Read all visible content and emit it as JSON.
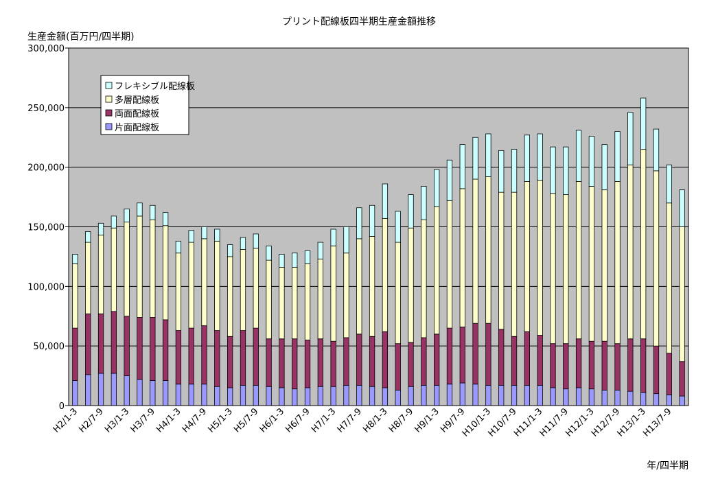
{
  "chart_data": {
    "type": "bar",
    "stacked": true,
    "title": "プリント配線板四半期生産金額推移",
    "ylabel": "生産金額(百万円/四半期)",
    "xlabel": "年/四半期",
    "ylim": [
      0,
      300000
    ],
    "yticks": [
      "0",
      "50,000",
      "100,000",
      "150,000",
      "200,000",
      "250,000",
      "300,000"
    ],
    "grid": true,
    "legend_position": "top-left",
    "categories": [
      "H2/1-3",
      "H2/4-6",
      "H2/7-9",
      "H2/10-12",
      "H3/1-3",
      "H3/4-6",
      "H3/7-9",
      "H3/10-12",
      "H4/1-3",
      "H4/4-6",
      "H4/7-9",
      "H4/10-12",
      "H5/1-3",
      "H5/4-6",
      "H5/7-9",
      "H5/10-12",
      "H6/1-3",
      "H6/4-6",
      "H6/7-9",
      "H6/10-12",
      "H7/1-3",
      "H7/4-6",
      "H7/7-9",
      "H7/10-12",
      "H8/1-3",
      "H8/4-6",
      "H8/7-9",
      "H8/10-12",
      "H9/1-3",
      "H9/4-6",
      "H9/7-9",
      "H9/10-12",
      "H10/1-3",
      "H10/4-6",
      "H10/7-9",
      "H10/10-12",
      "H11/1-3",
      "H11/4-6",
      "H11/7-9",
      "H11/10-12",
      "H12/1-3",
      "H12/4-6",
      "H12/7-9",
      "H12/10-12",
      "H13/1-3",
      "H13/4-6",
      "H13/7-9",
      "H13/10-12"
    ],
    "xtick_labels": [
      "H2/1-3",
      "H2/7-9",
      "H3/1-3",
      "H3/7-9",
      "H4/1-3",
      "H4/7-9",
      "H5/1-3",
      "H5/7-9",
      "H6/1-3",
      "H6/7-9",
      "H7/1-3",
      "H7/7-9",
      "H8/1-3",
      "H8/7-9",
      "H9/1-3",
      "H9/7-9",
      "H10/1-3",
      "H10/7-9",
      "H11/1-3",
      "H11/7-9",
      "H12/1-3",
      "H12/7-9",
      "H13/1-3",
      "H13/7-9"
    ],
    "series": [
      {
        "name": "片面配線板",
        "color": "#9999ff",
        "values": [
          21000,
          26000,
          27000,
          27000,
          25000,
          22000,
          21000,
          21000,
          18000,
          18000,
          18000,
          16000,
          15000,
          17000,
          17000,
          16000,
          15000,
          14000,
          15000,
          16000,
          16000,
          17000,
          17000,
          16000,
          15000,
          13000,
          16000,
          17000,
          17000,
          18000,
          19000,
          18000,
          17000,
          17000,
          17000,
          17000,
          17000,
          15000,
          14000,
          15000,
          14000,
          13000,
          13000,
          12000,
          11000,
          10000,
          9000,
          8000
        ]
      },
      {
        "name": "両面配線板",
        "color": "#993366",
        "values": [
          44000,
          51000,
          50000,
          52000,
          50000,
          52000,
          53000,
          51000,
          45000,
          47000,
          49000,
          47000,
          43000,
          46000,
          48000,
          40000,
          41000,
          42000,
          40000,
          40000,
          38000,
          40000,
          43000,
          42000,
          47000,
          39000,
          37000,
          40000,
          43000,
          47000,
          47000,
          51000,
          52000,
          47000,
          41000,
          45000,
          42000,
          37000,
          38000,
          41000,
          40000,
          41000,
          39000,
          44000,
          45000,
          40000,
          35000,
          29000
        ]
      },
      {
        "name": "多層配線板",
        "color": "#ffffcc",
        "values": [
          54000,
          60000,
          66000,
          70000,
          79000,
          85000,
          82000,
          79000,
          65000,
          72000,
          73000,
          75000,
          67000,
          68000,
          67000,
          66000,
          60000,
          60000,
          64000,
          67000,
          80000,
          71000,
          80000,
          84000,
          95000,
          85000,
          96000,
          99000,
          107000,
          107000,
          116000,
          121000,
          123000,
          115000,
          121000,
          126000,
          130000,
          126000,
          125000,
          132000,
          130000,
          127000,
          136000,
          146000,
          159000,
          147000,
          126000,
          113000
        ]
      },
      {
        "name": "フレキシブル配線板",
        "color": "#ccffff",
        "values": [
          8000,
          9000,
          10000,
          10000,
          11000,
          11000,
          12000,
          11000,
          10000,
          10000,
          10000,
          10000,
          10000,
          10000,
          12000,
          12000,
          11000,
          12000,
          11000,
          14000,
          14000,
          22000,
          26000,
          26000,
          29000,
          26000,
          28000,
          28000,
          31000,
          34000,
          37000,
          35000,
          36000,
          35000,
          36000,
          39000,
          39000,
          39000,
          40000,
          43000,
          42000,
          38000,
          42000,
          44000,
          43000,
          35000,
          32000,
          31000
        ]
      }
    ]
  }
}
